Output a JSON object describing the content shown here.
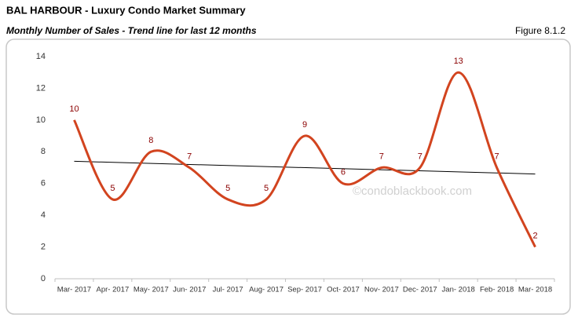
{
  "chart_data": {
    "type": "line",
    "title": "BAL HARBOUR - Luxury Condo Market Summary",
    "subtitle": "Monthly Number of Sales - Trend line for last 12 months",
    "figure_label": "Figure 8.1.2",
    "watermark": "©condoblackbook.com",
    "categories": [
      "Mar- 2017",
      "Apr- 2017",
      "May- 2017",
      "Jun- 2017",
      "Jul- 2017",
      "Aug- 2017",
      "Sep- 2017",
      "Oct- 2017",
      "Nov- 2017",
      "Dec- 2017",
      "Jan- 2018",
      "Feb- 2018",
      "Mar- 2018"
    ],
    "values": [
      10,
      5,
      8,
      7,
      5,
      5,
      9,
      6,
      7,
      7,
      13,
      7,
      2
    ],
    "color": "#d2441f",
    "trendline": {
      "values": [
        7.4,
        6.6
      ],
      "color": "#000000"
    },
    "label_color": "#8b0000",
    "smooth": true,
    "ylim": [
      0,
      14
    ],
    "yticks": [
      0,
      2,
      4,
      6,
      8,
      10,
      12,
      14
    ],
    "grid": false
  }
}
